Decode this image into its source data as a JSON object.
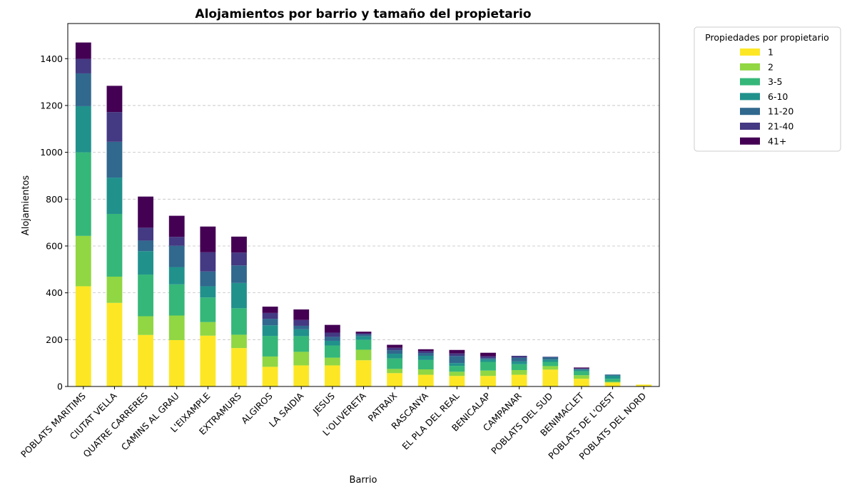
{
  "chart_data": {
    "type": "bar",
    "stacked": true,
    "title": "Alojamientos por barrio y tamaño del propietario",
    "xlabel": "Barrio",
    "ylabel": "Alojamientos",
    "ylim": [
      0,
      1550
    ],
    "yticks": [
      0,
      200,
      400,
      600,
      800,
      1000,
      1200,
      1400
    ],
    "grid": "horizontal dashed",
    "legend_title": "Propiedades por propietario",
    "legend_position": "outside right, top",
    "categories": [
      "POBLATS MARITIMS",
      "CIUTAT VELLA",
      "QUATRE CARRERES",
      "CAMINS AL GRAU",
      "L'EIXAMPLE",
      "EXTRAMURS",
      "ALGIROS",
      "LA SAIDIA",
      "JESUS",
      "L'OLIVERETA",
      "PATRAIX",
      "RASCANYA",
      "EL PLA DEL REAL",
      "BENICALAP",
      "CAMPANAR",
      "POBLATS DEL SUD",
      "BENIMACLET",
      "POBLATS DE L'OEST",
      "POBLATS DEL NORD"
    ],
    "series": [
      {
        "name": "1",
        "color": "#fde725",
        "values": [
          428,
          357,
          220,
          198,
          217,
          164,
          84,
          90,
          90,
          112,
          57,
          50,
          45,
          45,
          50,
          72,
          33,
          17,
          8
        ]
      },
      {
        "name": "2",
        "color": "#90d743",
        "values": [
          215,
          112,
          80,
          105,
          58,
          57,
          44,
          58,
          33,
          45,
          18,
          23,
          18,
          23,
          20,
          15,
          15,
          3,
          0
        ]
      },
      {
        "name": "3-5",
        "color": "#35b779",
        "values": [
          357,
          268,
          178,
          133,
          105,
          113,
          88,
          67,
          52,
          42,
          45,
          40,
          25,
          37,
          25,
          18,
          17,
          13,
          0
        ]
      },
      {
        "name": "6-10",
        "color": "#21918c",
        "values": [
          197,
          155,
          100,
          74,
          48,
          108,
          45,
          29,
          20,
          15,
          20,
          18,
          12,
          10,
          12,
          10,
          7,
          13,
          0
        ]
      },
      {
        "name": "11-20",
        "color": "#31688e",
        "values": [
          140,
          153,
          45,
          91,
          63,
          75,
          28,
          15,
          17,
          8,
          15,
          12,
          30,
          6,
          16,
          10,
          3,
          5,
          0
        ]
      },
      {
        "name": "21-40",
        "color": "#443983",
        "values": [
          62,
          127,
          55,
          38,
          82,
          55,
          25,
          25,
          18,
          5,
          10,
          8,
          11,
          8,
          8,
          2,
          2,
          0,
          0
        ]
      },
      {
        "name": "41+",
        "color": "#440154",
        "values": [
          70,
          112,
          133,
          90,
          110,
          68,
          27,
          45,
          33,
          7,
          13,
          8,
          15,
          15,
          0,
          0,
          4,
          0,
          0
        ]
      }
    ]
  }
}
